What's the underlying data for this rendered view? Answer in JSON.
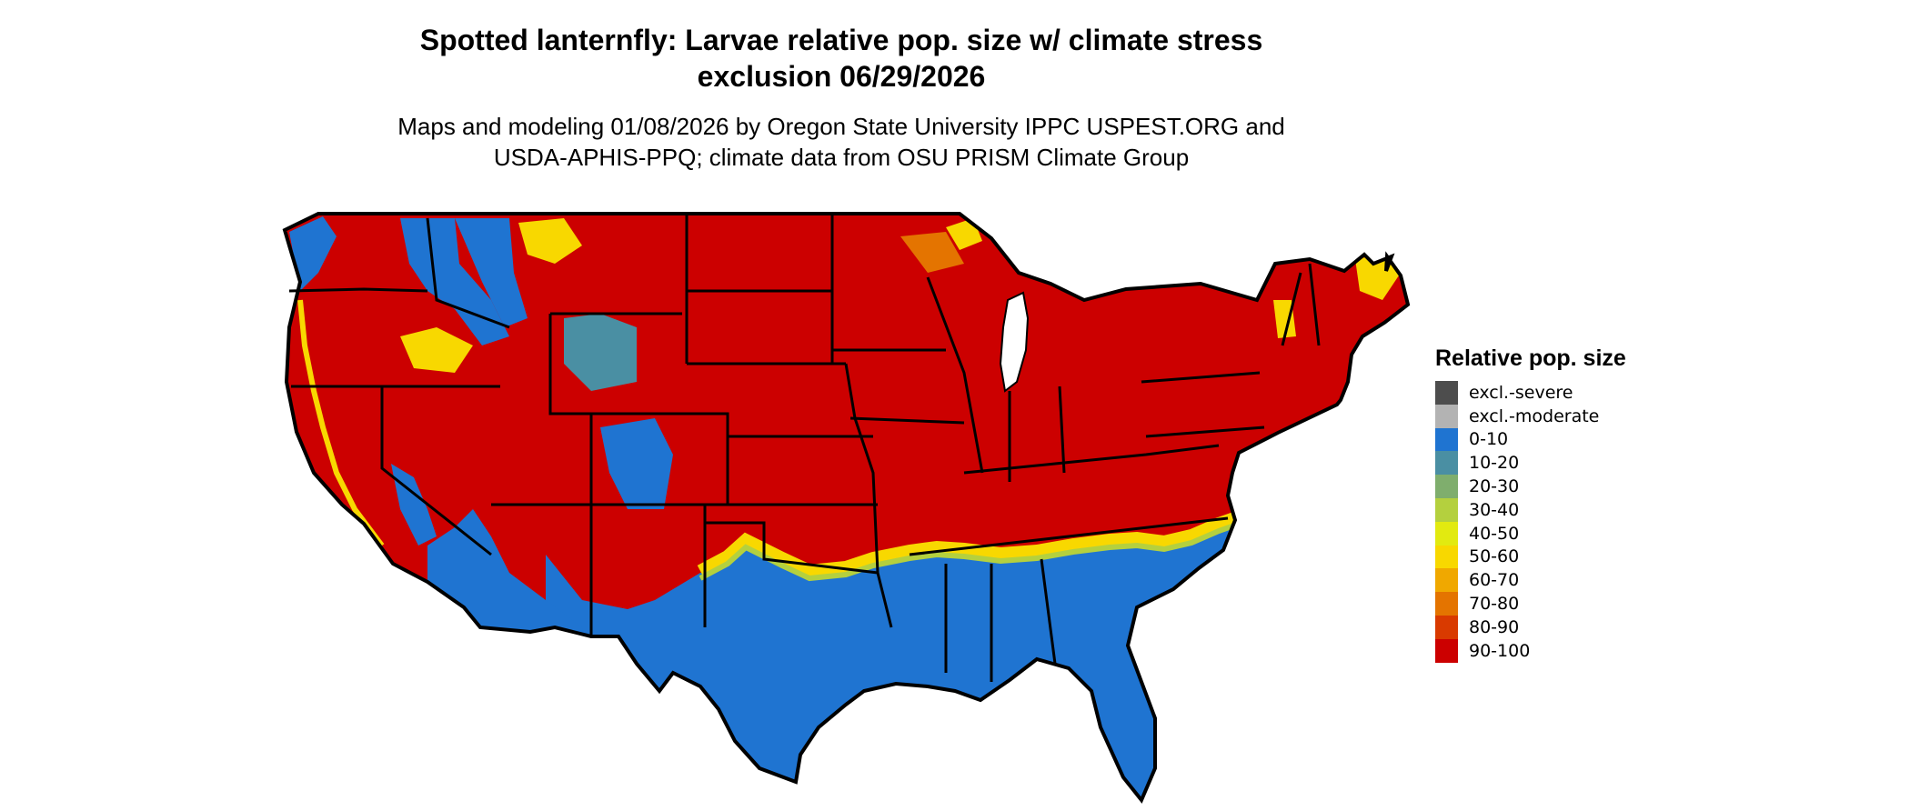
{
  "title": "Spotted lanternfly: Larvae relative pop. size w/ climate stress exclusion 06/29/2026",
  "title_line1": "Spotted lanternfly: Larvae relative pop. size w/ climate stress",
  "title_line2": "exclusion 06/29/2026",
  "subtitle_line1": "Maps and modeling 01/08/2026 by Oregon State University IPPC USPEST.ORG and",
  "subtitle_line2": "USDA-APHIS-PPQ; climate data from OSU PRISM Climate Group",
  "legend": {
    "title": "Relative pop. size",
    "items": [
      {
        "label": "excl.-severe",
        "color": "#4d4d4d"
      },
      {
        "label": "excl.-moderate",
        "color": "#b3b3b3"
      },
      {
        "label": "0-10",
        "color": "#1f74d1"
      },
      {
        "label": "10-20",
        "color": "#4a8fa3"
      },
      {
        "label": "20-30",
        "color": "#7fae6d"
      },
      {
        "label": "30-40",
        "color": "#b4d03e"
      },
      {
        "label": "40-50",
        "color": "#e2ea10"
      },
      {
        "label": "50-60",
        "color": "#f8d800"
      },
      {
        "label": "60-70",
        "color": "#f0a800"
      },
      {
        "label": "70-80",
        "color": "#e47400"
      },
      {
        "label": "80-90",
        "color": "#d93a00"
      },
      {
        "label": "90-100",
        "color": "#cc0000"
      }
    ]
  },
  "colors": {
    "high": "#cc0000",
    "low": "#1f74d1",
    "mid": "#f8d800",
    "orange": "#e47400",
    "teal": "#4a8fa3",
    "lime": "#b4d03e",
    "border": "#000000"
  }
}
